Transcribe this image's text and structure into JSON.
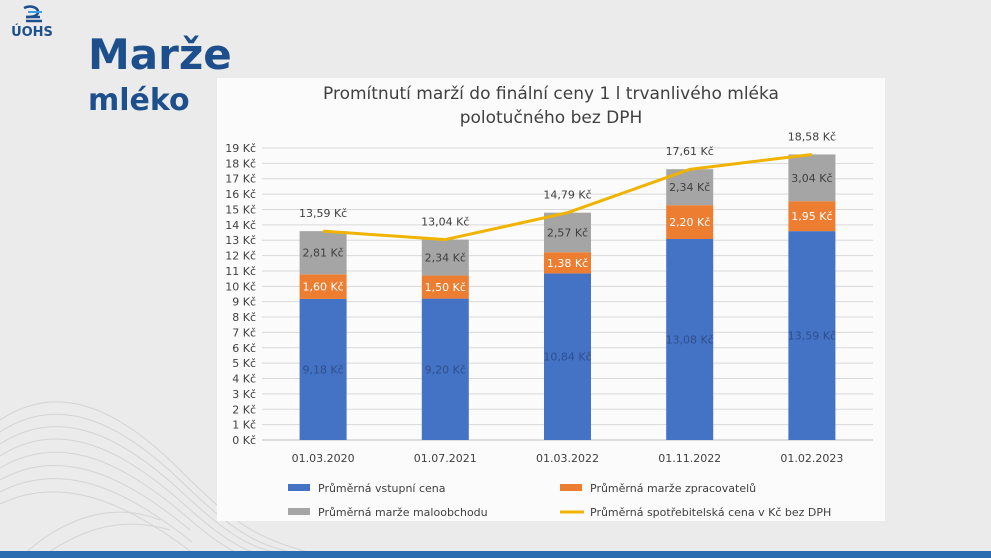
{
  "header": {
    "logo_text": "ÚOHS",
    "title": "Marže",
    "subtitle": "mléko"
  },
  "colors": {
    "brand": "#1d4f8c",
    "input": "#4472c4",
    "processor": "#ed7d31",
    "retail": "#a5a5a5",
    "consumer_line": "#f0b400"
  },
  "chart_data": {
    "type": "bar",
    "stacked": true,
    "title_lines": [
      "Promítnutí marží do finální ceny 1 l trvanlivého mléka",
      "polotučného bez DPH"
    ],
    "categories": [
      "01.03.2020",
      "01.07.2021",
      "01.03.2022",
      "01.11.2022",
      "01.02.2023"
    ],
    "y_ticks": [
      "0 Kč",
      "1 Kč",
      "2 Kč",
      "3 Kč",
      "4 Kč",
      "5 Kč",
      "6 Kč",
      "7 Kč",
      "8 Kč",
      "9 Kč",
      "10 Kč",
      "11 Kč",
      "12 Kč",
      "13 Kč",
      "14 Kč",
      "15 Kč",
      "16 Kč",
      "17 Kč",
      "18 Kč",
      "19 Kč"
    ],
    "ylim": [
      0,
      19
    ],
    "grid": true,
    "legend_position": "bottom",
    "series": [
      {
        "name": "Průměrná vstupní cena",
        "color": "#4472c4",
        "values": [
          9.18,
          9.2,
          10.84,
          13.08,
          13.59
        ],
        "labels": [
          "9,18 Kč",
          "9,20 Kč",
          "10,84 Kč",
          "13,08 Kč",
          "13,59 Kč"
        ]
      },
      {
        "name": "Průměrná marže zpracovatelů",
        "color": "#ed7d31",
        "values": [
          1.6,
          1.5,
          1.38,
          2.2,
          1.95
        ],
        "labels": [
          "1,60 Kč",
          "1,50 Kč",
          "1,38 Kč",
          "2,20 Kč",
          "1,95 Kč"
        ]
      },
      {
        "name": "Průměrná marže maloobchodu",
        "color": "#a5a5a5",
        "values": [
          2.81,
          2.34,
          2.57,
          2.34,
          3.04
        ],
        "labels": [
          "2,81 Kč",
          "2,34 Kč",
          "2,57 Kč",
          "2,34 Kč",
          "3,04 Kč"
        ]
      }
    ],
    "line": {
      "name": "Průměrná spotřebitelská cena v Kč bez DPH",
      "color": "#f0b400",
      "values": [
        13.59,
        13.04,
        14.79,
        17.61,
        18.58
      ],
      "labels": [
        "13,59 Kč",
        "13,04 Kč",
        "14,79 Kč",
        "17,61 Kč",
        "18,58 Kč"
      ]
    },
    "legend": [
      "Průměrná vstupní cena",
      "Průměrná marže zpracovatelů",
      "Průměrná marže maloobchodu",
      "Průměrná spotřebitelská cena v Kč bez DPH"
    ]
  }
}
